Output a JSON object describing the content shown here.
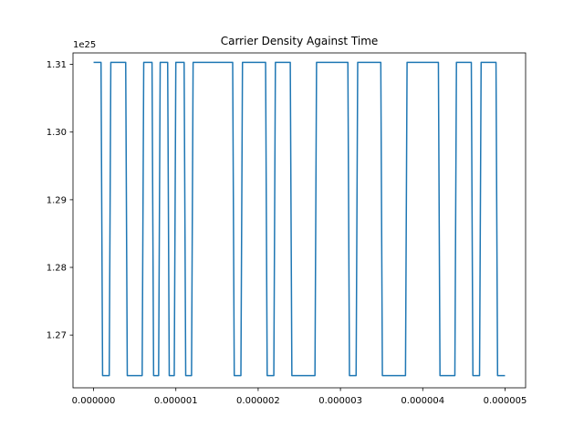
{
  "chart_data": {
    "type": "line",
    "title": "Carrier Density Against Time",
    "xlabel": "",
    "ylabel": "",
    "y_offset_label": "1e25",
    "xlim": [
      -2.5e-07,
      5.25e-06
    ],
    "ylim": [
      1.2622,
      1.3117
    ],
    "grid": false,
    "x_ticks": [
      0,
      1e-06,
      2e-06,
      3e-06,
      4e-06,
      5e-06
    ],
    "x_tick_labels": [
      "0.000000",
      "0.000001",
      "0.000002",
      "0.000003",
      "0.000004",
      "0.000005"
    ],
    "y_ticks": [
      1.27,
      1.28,
      1.29,
      1.3,
      1.31
    ],
    "y_tick_labels": [
      "1.27",
      "1.28",
      "1.29",
      "1.30",
      "1.31"
    ],
    "series": [
      {
        "color": "#1f77b4",
        "high": 1.3103,
        "low": 1.264,
        "x_start": 0,
        "x_end": 5e-06,
        "start_level": "high",
        "transitions": [
          1e-07,
          2e-07,
          4e-07,
          6e-07,
          7.2e-07,
          8e-07,
          9.1e-07,
          9.9e-07,
          1.11e-06,
          1.2e-06,
          1.7e-06,
          1.8e-06,
          2.1e-06,
          2.2e-06,
          2.4e-06,
          2.7e-06,
          3.1e-06,
          3.2e-06,
          3.5e-06,
          3.8e-06,
          4.2e-06,
          4.4e-06,
          4.6e-06,
          4.7e-06,
          4.9e-06
        ]
      }
    ]
  }
}
